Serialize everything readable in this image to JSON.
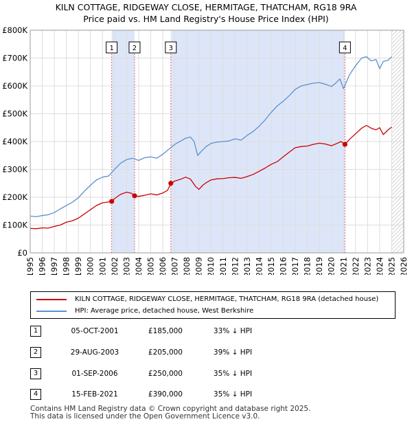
{
  "header": {
    "title_line1": "KILN COTTAGE, RIDGEWAY CLOSE, HERMITAGE, THATCHAM, RG18 9RA",
    "title_line2": "Price paid vs. HM Land Registry's House Price Index (HPI)"
  },
  "colors": {
    "property": "#cc0000",
    "hpi": "#5b8fd0",
    "shade": "#dde6f8",
    "grid": "#dddddd",
    "marker_line": "#e06666"
  },
  "chart_data": {
    "type": "line",
    "title": "Price paid vs. HM Land Registry's House Price Index (HPI)",
    "xlim": [
      1995,
      2026
    ],
    "ylim": [
      0,
      800000
    ],
    "y_ticks": [
      0,
      100000,
      200000,
      300000,
      400000,
      500000,
      600000,
      700000,
      800000
    ],
    "y_tick_labels": [
      "£0",
      "£100K",
      "£200K",
      "£300K",
      "£400K",
      "£500K",
      "£600K",
      "£700K",
      "£800K"
    ],
    "x_ticks": [
      1995,
      1996,
      1997,
      1998,
      1999,
      2000,
      2001,
      2002,
      2003,
      2004,
      2005,
      2006,
      2007,
      2008,
      2009,
      2010,
      2011,
      2012,
      2013,
      2014,
      2015,
      2016,
      2017,
      2018,
      2019,
      2020,
      2021,
      2022,
      2023,
      2024,
      2025,
      2026
    ],
    "x_tick_labels": [
      "1995",
      "1996",
      "1997",
      "1998",
      "1999",
      "2000",
      "2001",
      "2002",
      "2003",
      "2004",
      "2005",
      "2006",
      "2007",
      "2008",
      "2009",
      "2010",
      "2011",
      "2012",
      "2013",
      "2014",
      "2015",
      "2016",
      "2017",
      "2018",
      "2019",
      "2020",
      "2021",
      "2022",
      "2023",
      "2024",
      "2025",
      "2026"
    ],
    "grid": true,
    "shaded_ranges": [
      [
        2001.76,
        2003.66
      ],
      [
        2006.67,
        2021.12
      ]
    ],
    "future_hatch_from": 2025.0,
    "series": [
      {
        "name": "KILN COTTAGE, RIDGEWAY CLOSE, HERMITAGE, THATCHAM, RG18 9RA (detached house)",
        "color": "#cc0000",
        "x": [
          1995.0,
          1995.5,
          1996.0,
          1996.5,
          1997.0,
          1997.5,
          1998.0,
          1998.5,
          1999.0,
          1999.5,
          2000.0,
          2000.5,
          2001.0,
          2001.5,
          2001.76,
          2002.0,
          2002.5,
          2003.0,
          2003.4,
          2003.66,
          2004.0,
          2004.5,
          2005.0,
          2005.5,
          2006.0,
          2006.4,
          2006.67,
          2007.0,
          2007.5,
          2007.9,
          2008.3,
          2008.7,
          2009.0,
          2009.3,
          2009.6,
          2010.0,
          2010.5,
          2011.0,
          2011.5,
          2012.0,
          2012.5,
          2013.0,
          2013.5,
          2014.0,
          2014.5,
          2015.0,
          2015.5,
          2016.0,
          2016.5,
          2017.0,
          2017.5,
          2018.0,
          2018.5,
          2019.0,
          2019.5,
          2020.0,
          2020.4,
          2020.8,
          2021.12,
          2021.5,
          2022.0,
          2022.5,
          2022.9,
          2023.3,
          2023.7,
          2024.0,
          2024.3,
          2024.7,
          2025.0
        ],
        "values": [
          88000,
          87000,
          90000,
          89000,
          95000,
          100000,
          110000,
          115000,
          125000,
          140000,
          155000,
          170000,
          180000,
          183000,
          185000,
          195000,
          210000,
          218000,
          214000,
          205000,
          203000,
          207000,
          212000,
          208000,
          215000,
          225000,
          250000,
          258000,
          265000,
          272000,
          265000,
          240000,
          228000,
          242000,
          252000,
          262000,
          266000,
          267000,
          270000,
          271000,
          268000,
          274000,
          282000,
          293000,
          305000,
          318000,
          328000,
          345000,
          362000,
          378000,
          382000,
          384000,
          390000,
          394000,
          391000,
          385000,
          392000,
          400000,
          390000,
          408000,
          428000,
          448000,
          458000,
          448000,
          442000,
          450000,
          425000,
          442000,
          452000
        ]
      },
      {
        "name": "HPI: Average price, detached house, West Berkshire",
        "color": "#5b8fd0",
        "x": [
          1995.0,
          1995.5,
          1996.0,
          1996.5,
          1997.0,
          1997.5,
          1998.0,
          1998.5,
          1999.0,
          1999.5,
          2000.0,
          2000.5,
          2001.0,
          2001.5,
          2002.0,
          2002.5,
          2003.0,
          2003.5,
          2004.0,
          2004.5,
          2005.0,
          2005.5,
          2006.0,
          2006.5,
          2007.0,
          2007.5,
          2007.9,
          2008.3,
          2008.6,
          2008.9,
          2009.2,
          2009.6,
          2010.0,
          2010.5,
          2011.0,
          2011.5,
          2012.0,
          2012.5,
          2013.0,
          2013.5,
          2014.0,
          2014.5,
          2015.0,
          2015.5,
          2016.0,
          2016.5,
          2017.0,
          2017.5,
          2018.0,
          2018.5,
          2019.0,
          2019.5,
          2020.0,
          2020.3,
          2020.7,
          2021.0,
          2021.5,
          2022.0,
          2022.5,
          2022.9,
          2023.3,
          2023.7,
          2024.0,
          2024.3,
          2024.7,
          2025.0
        ],
        "values": [
          132000,
          130000,
          134000,
          137000,
          145000,
          158000,
          170000,
          182000,
          198000,
          222000,
          243000,
          262000,
          272000,
          276000,
          300000,
          322000,
          335000,
          340000,
          332000,
          342000,
          345000,
          340000,
          354000,
          372000,
          390000,
          402000,
          412000,
          416000,
          400000,
          350000,
          365000,
          382000,
          393000,
          398000,
          400000,
          402000,
          410000,
          405000,
          422000,
          436000,
          455000,
          478000,
          505000,
          528000,
          545000,
          565000,
          588000,
          600000,
          605000,
          610000,
          612000,
          606000,
          598000,
          608000,
          625000,
          590000,
          640000,
          672000,
          700000,
          705000,
          690000,
          695000,
          662000,
          688000,
          692000,
          705000
        ]
      }
    ],
    "sales": [
      {
        "label": "1",
        "x": 2001.76,
        "value": 185000
      },
      {
        "label": "2",
        "x": 2003.66,
        "value": 205000
      },
      {
        "label": "3",
        "x": 2006.67,
        "value": 250000
      },
      {
        "label": "4",
        "x": 2021.12,
        "value": 390000
      }
    ]
  },
  "legend": {
    "property_label": "KILN COTTAGE, RIDGEWAY CLOSE, HERMITAGE, THATCHAM, RG18 9RA (detached house)",
    "hpi_label": "HPI: Average price, detached house, West Berkshire"
  },
  "transactions": [
    {
      "num": "1",
      "date": "05-OCT-2001",
      "price": "£185,000",
      "hpi": "33% ↓ HPI"
    },
    {
      "num": "2",
      "date": "29-AUG-2003",
      "price": "£205,000",
      "hpi": "39% ↓ HPI"
    },
    {
      "num": "3",
      "date": "01-SEP-2006",
      "price": "£250,000",
      "hpi": "35% ↓ HPI"
    },
    {
      "num": "4",
      "date": "15-FEB-2021",
      "price": "£390,000",
      "hpi": "35% ↓ HPI"
    }
  ],
  "footer": {
    "line1": "Contains HM Land Registry data © Crown copyright and database right 2025.",
    "line2": "This data is licensed under the Open Government Licence v3.0."
  }
}
